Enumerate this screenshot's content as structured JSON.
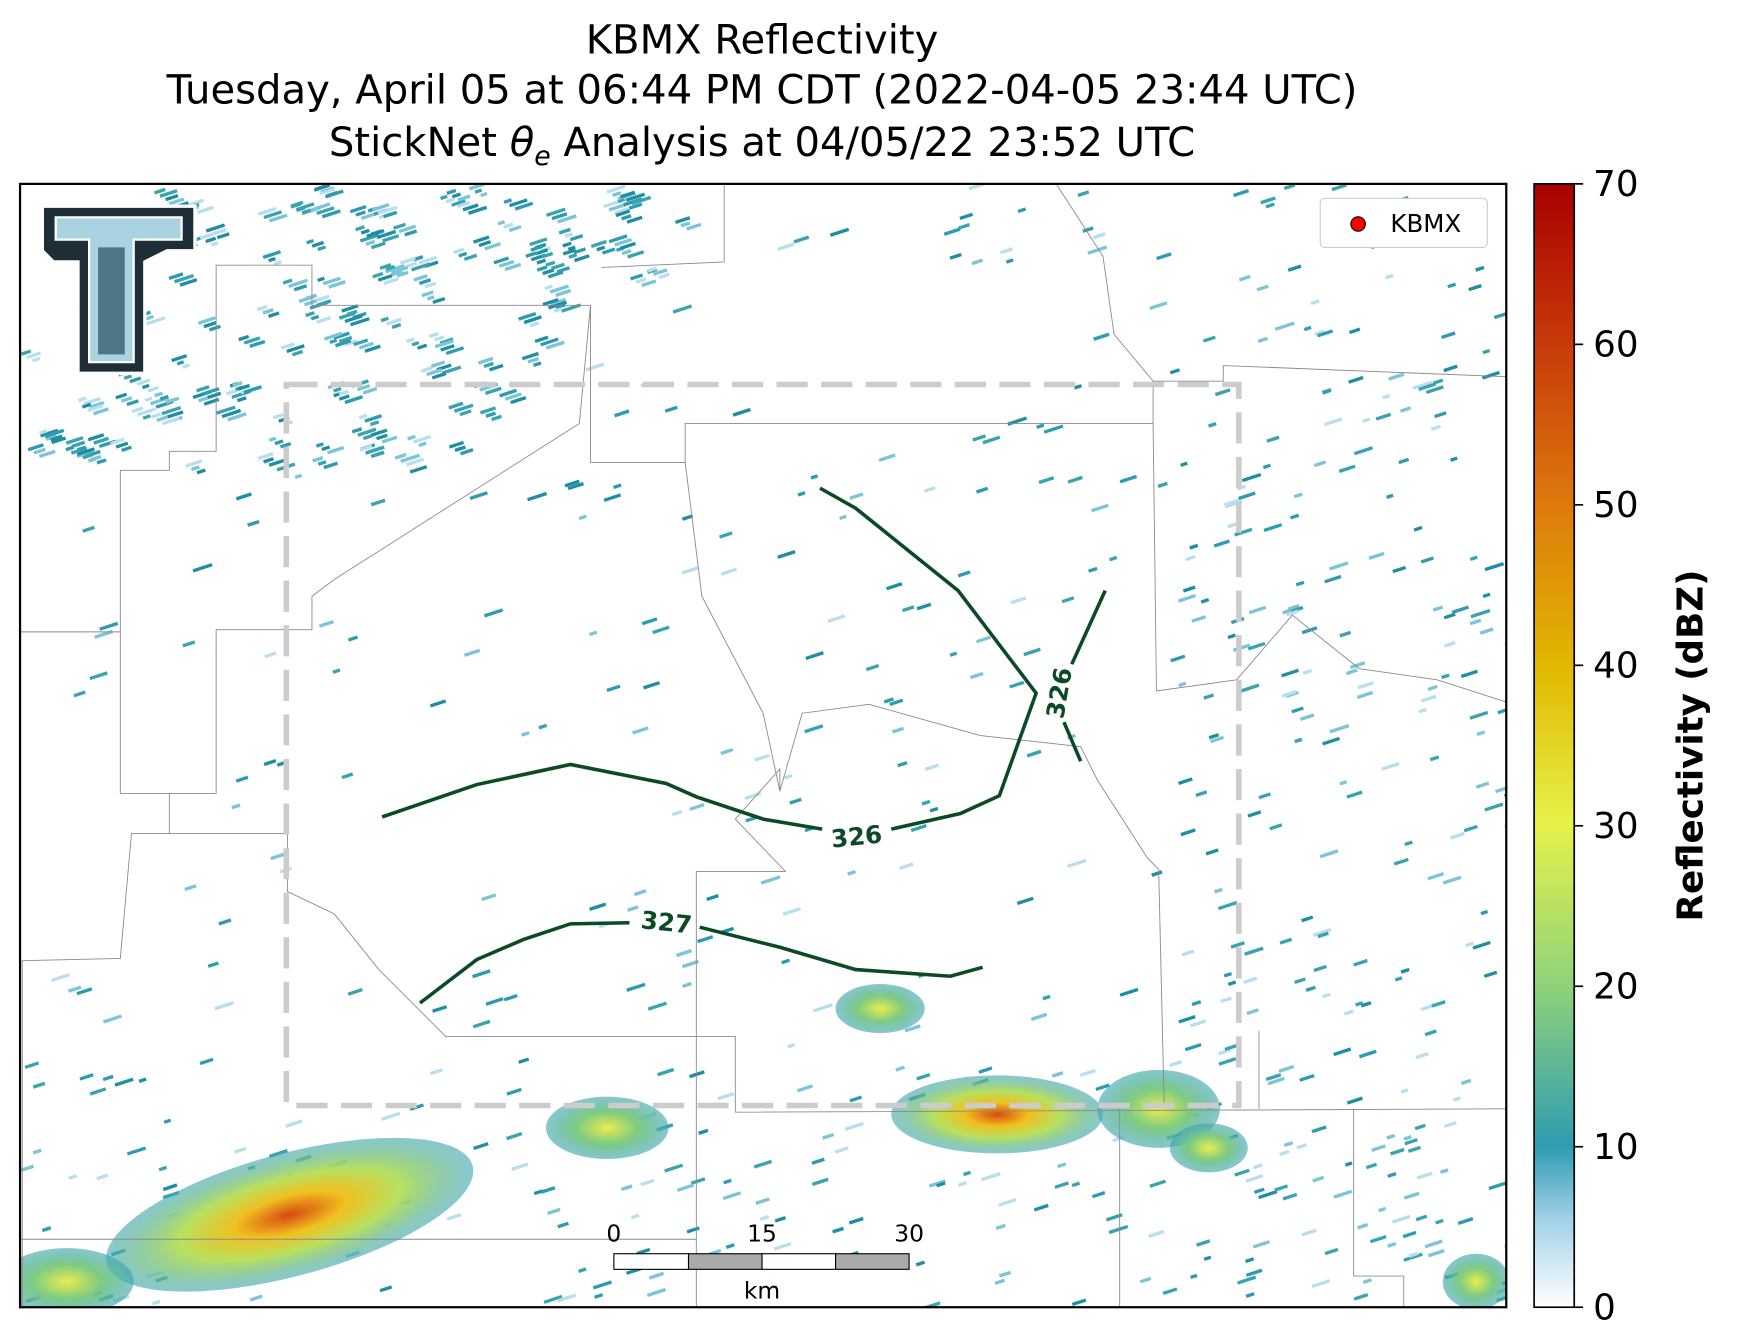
{
  "header": {
    "title": "KBMX Reflectivity",
    "subtitle": "Tuesday, April 05 at 06:44 PM CDT (2022-04-05 23:44 UTC)",
    "analysis": {
      "prefix": "StickNet ",
      "symbol": "θ",
      "subscript": "e",
      "suffix": " Analysis at 04/05/22 23:52 UTC"
    }
  },
  "legend": {
    "label": "KBMX",
    "color": "#ff0000"
  },
  "contours": {
    "labels": [
      "326",
      "326",
      "327"
    ]
  },
  "scalebar": {
    "ticks": [
      "0",
      "15",
      "30"
    ],
    "unit": "km"
  },
  "colorbar": {
    "label": "Reflectivity (dBZ)",
    "range": [
      0,
      70
    ],
    "ticks": [
      0,
      10,
      20,
      30,
      40,
      50,
      60,
      70
    ]
  }
}
